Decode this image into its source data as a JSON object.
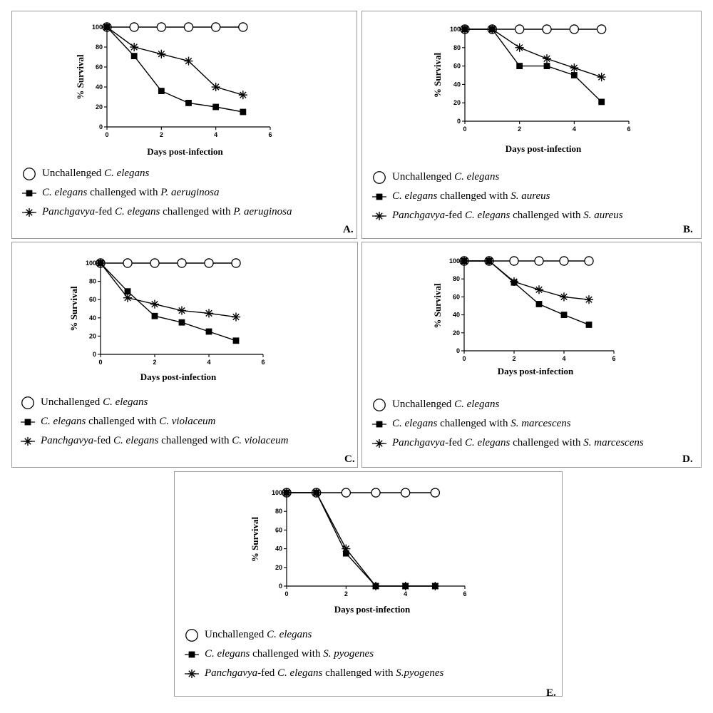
{
  "chart_data": [
    {
      "type": "line",
      "panel_label": "A.",
      "xlabel": "Days post-infection",
      "ylabel": "% Survival",
      "xlim": [
        0,
        6
      ],
      "ylim": [
        0,
        100
      ],
      "xticks": [
        "0",
        "2",
        "4",
        "6"
      ],
      "yticks": [
        "0",
        "20",
        "40",
        "60",
        "80",
        "100"
      ],
      "legend": [
        {
          "marker": "circle-open",
          "parts": [
            {
              "t": "Unchallenged ",
              "i": false
            },
            {
              "t": "C. elegans",
              "i": true
            }
          ]
        },
        {
          "marker": "square-filled",
          "parts": [
            {
              "t": "C. elegans",
              "i": true
            },
            {
              "t": " challenged with ",
              "i": false
            },
            {
              "t": "P. aeruginosa",
              "i": true
            }
          ]
        },
        {
          "marker": "asterisk",
          "parts": [
            {
              "t": "Panchgavya",
              "i": true
            },
            {
              "t": "-fed  ",
              "i": false
            },
            {
              "t": "C. elegans",
              "i": true
            },
            {
              "t": " challenged with ",
              "i": false
            },
            {
              "t": "P. aeruginosa",
              "i": true
            }
          ]
        }
      ],
      "series": [
        {
          "marker": "circle-open",
          "x": [
            0,
            1,
            2,
            3,
            4,
            5
          ],
          "y": [
            100,
            100,
            100,
            100,
            100,
            100
          ]
        },
        {
          "marker": "square-filled",
          "x": [
            0,
            1,
            2,
            3,
            4,
            5
          ],
          "y": [
            100,
            71,
            36,
            24,
            20,
            15
          ]
        },
        {
          "marker": "asterisk",
          "x": [
            0,
            1,
            2,
            3,
            4,
            5
          ],
          "y": [
            100,
            80,
            73,
            66,
            40,
            32
          ]
        }
      ]
    },
    {
      "type": "line",
      "panel_label": "B.",
      "xlabel": "Days post-infection",
      "ylabel": "% Survival",
      "xlim": [
        0,
        6
      ],
      "ylim": [
        0,
        100
      ],
      "xticks": [
        "0",
        "2",
        "4",
        "6"
      ],
      "yticks": [
        "0",
        "20",
        "40",
        "60",
        "80",
        "100"
      ],
      "legend": [
        {
          "marker": "circle-open",
          "parts": [
            {
              "t": "Unchallenged ",
              "i": false
            },
            {
              "t": "C. elegans",
              "i": true
            }
          ]
        },
        {
          "marker": "square-filled",
          "parts": [
            {
              "t": "C. elegans",
              "i": true
            },
            {
              "t": " challenged with ",
              "i": false
            },
            {
              "t": "S. aureus",
              "i": true
            }
          ]
        },
        {
          "marker": "asterisk",
          "parts": [
            {
              "t": "Panchgavya",
              "i": true
            },
            {
              "t": "-fed  ",
              "i": false
            },
            {
              "t": "C. elegans",
              "i": true
            },
            {
              "t": " challenged with ",
              "i": false
            },
            {
              "t": "S. aureus",
              "i": true
            }
          ]
        }
      ],
      "series": [
        {
          "marker": "circle-open",
          "x": [
            0,
            1,
            2,
            3,
            4,
            5
          ],
          "y": [
            100,
            100,
            100,
            100,
            100,
            100
          ]
        },
        {
          "marker": "square-filled",
          "x": [
            0,
            1,
            2,
            3,
            4,
            5
          ],
          "y": [
            100,
            100,
            60,
            60,
            50,
            21
          ]
        },
        {
          "marker": "asterisk",
          "x": [
            0,
            1,
            2,
            3,
            4,
            5
          ],
          "y": [
            100,
            100,
            80,
            68,
            58,
            48
          ]
        }
      ]
    },
    {
      "type": "line",
      "panel_label": "C.",
      "xlabel": "Days post-infection",
      "ylabel": "% Survival",
      "xlim": [
        0,
        6
      ],
      "ylim": [
        0,
        100
      ],
      "xticks": [
        "0",
        "2",
        "4",
        "6"
      ],
      "yticks": [
        "0",
        "20",
        "40",
        "60",
        "80",
        "100"
      ],
      "legend": [
        {
          "marker": "circle-open",
          "parts": [
            {
              "t": "Unchallenged ",
              "i": false
            },
            {
              "t": "C. elegans",
              "i": true
            }
          ]
        },
        {
          "marker": "square-filled",
          "parts": [
            {
              "t": "C. elegans",
              "i": true
            },
            {
              "t": " challenged with ",
              "i": false
            },
            {
              "t": "C. violaceum",
              "i": true
            }
          ]
        },
        {
          "marker": "asterisk",
          "parts": [
            {
              "t": "Panchgavya",
              "i": true
            },
            {
              "t": "-fed  ",
              "i": false
            },
            {
              "t": "C. elegans",
              "i": true
            },
            {
              "t": " challenged with ",
              "i": false
            },
            {
              "t": "C. violaceum",
              "i": true
            }
          ]
        }
      ],
      "series": [
        {
          "marker": "circle-open",
          "x": [
            0,
            1,
            2,
            3,
            4,
            5
          ],
          "y": [
            100,
            100,
            100,
            100,
            100,
            100
          ]
        },
        {
          "marker": "square-filled",
          "x": [
            0,
            1,
            2,
            3,
            4,
            5
          ],
          "y": [
            100,
            69,
            42,
            35,
            25,
            15
          ]
        },
        {
          "marker": "asterisk",
          "x": [
            0,
            1,
            2,
            3,
            4,
            5
          ],
          "y": [
            100,
            62,
            55,
            48,
            45,
            41
          ]
        }
      ]
    },
    {
      "type": "line",
      "panel_label": "D.",
      "xlabel": "Days post-infection",
      "ylabel": "% Survival",
      "xlim": [
        0,
        6
      ],
      "ylim": [
        0,
        100
      ],
      "xticks": [
        "0",
        "2",
        "4",
        "6"
      ],
      "yticks": [
        "0",
        "20",
        "40",
        "60",
        "80",
        "100"
      ],
      "legend": [
        {
          "marker": "circle-open",
          "parts": [
            {
              "t": "Unchallenged ",
              "i": false
            },
            {
              "t": "C. elegans",
              "i": true
            }
          ]
        },
        {
          "marker": "square-filled",
          "parts": [
            {
              "t": "C. elegans",
              "i": true
            },
            {
              "t": " challenged with ",
              "i": false
            },
            {
              "t": "S. marcescens",
              "i": true
            }
          ]
        },
        {
          "marker": "asterisk",
          "parts": [
            {
              "t": "Panchgavya",
              "i": true
            },
            {
              "t": "-fed  ",
              "i": false
            },
            {
              "t": "C. elegans",
              "i": true
            },
            {
              "t": " challenged with ",
              "i": false
            },
            {
              "t": "S. marcescens",
              "i": true
            }
          ]
        }
      ],
      "series": [
        {
          "marker": "circle-open",
          "x": [
            0,
            1,
            2,
            3,
            4,
            5
          ],
          "y": [
            100,
            100,
            100,
            100,
            100,
            100
          ]
        },
        {
          "marker": "square-filled",
          "x": [
            0,
            1,
            2,
            3,
            4,
            5
          ],
          "y": [
            100,
            100,
            76,
            52,
            40,
            29
          ]
        },
        {
          "marker": "asterisk",
          "x": [
            0,
            1,
            2,
            3,
            4,
            5
          ],
          "y": [
            100,
            100,
            77,
            68,
            60,
            57
          ]
        }
      ]
    },
    {
      "type": "line",
      "panel_label": "E.",
      "xlabel": "Days post-infection",
      "ylabel": "% Survival",
      "xlim": [
        0,
        6
      ],
      "ylim": [
        0,
        100
      ],
      "xticks": [
        "0",
        "2",
        "4",
        "6"
      ],
      "yticks": [
        "0",
        "20",
        "40",
        "60",
        "80",
        "100"
      ],
      "legend": [
        {
          "marker": "circle-open",
          "parts": [
            {
              "t": "Unchallenged ",
              "i": false
            },
            {
              "t": "C. elegans",
              "i": true
            }
          ]
        },
        {
          "marker": "square-filled",
          "parts": [
            {
              "t": "C. elegans",
              "i": true
            },
            {
              "t": " challenged with ",
              "i": false
            },
            {
              "t": "S. pyogenes",
              "i": true
            }
          ]
        },
        {
          "marker": "asterisk",
          "parts": [
            {
              "t": "Panchgavya",
              "i": true
            },
            {
              "t": "-fed  ",
              "i": false
            },
            {
              "t": "C. elegans",
              "i": true
            },
            {
              "t": " challenged with ",
              "i": false
            },
            {
              "t": "S.pyogenes",
              "i": true
            }
          ]
        }
      ],
      "series": [
        {
          "marker": "circle-open",
          "x": [
            0,
            1,
            2,
            3,
            4,
            5
          ],
          "y": [
            100,
            100,
            100,
            100,
            100,
            100
          ]
        },
        {
          "marker": "square-filled",
          "x": [
            0,
            1,
            2,
            3,
            4,
            5
          ],
          "y": [
            100,
            100,
            35,
            0,
            0,
            0
          ]
        },
        {
          "marker": "asterisk",
          "x": [
            0,
            1,
            2,
            3,
            4,
            5
          ],
          "y": [
            100,
            100,
            40,
            0,
            0,
            0
          ]
        }
      ]
    }
  ]
}
